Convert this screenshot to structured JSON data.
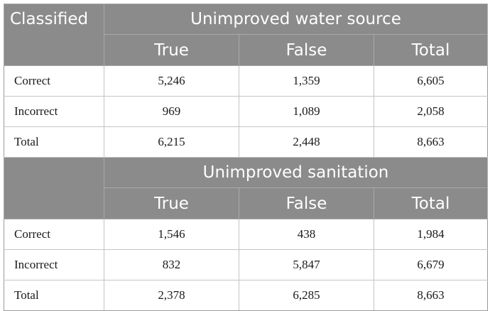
{
  "table": {
    "corner_label": "Classified",
    "sections": [
      {
        "title": "Unimproved water source",
        "columns": [
          "True",
          "False",
          "Total"
        ],
        "rows": [
          {
            "label": "Correct",
            "values": [
              "5,246",
              "1,359",
              "6,605"
            ]
          },
          {
            "label": "Incorrect",
            "values": [
              "969",
              "1,089",
              "2,058"
            ]
          },
          {
            "label": "Total",
            "values": [
              "6,215",
              "2,448",
              "8,663"
            ]
          }
        ]
      },
      {
        "title": "Unimproved sanitation",
        "columns": [
          "True",
          "False",
          "Total"
        ],
        "rows": [
          {
            "label": "Correct",
            "values": [
              "1,546",
              "438",
              "1,984"
            ]
          },
          {
            "label": "Incorrect",
            "values": [
              "832",
              "5,847",
              "6,679"
            ]
          },
          {
            "label": "Total",
            "values": [
              "2,378",
              "6,285",
              "8,663"
            ]
          }
        ]
      }
    ]
  }
}
